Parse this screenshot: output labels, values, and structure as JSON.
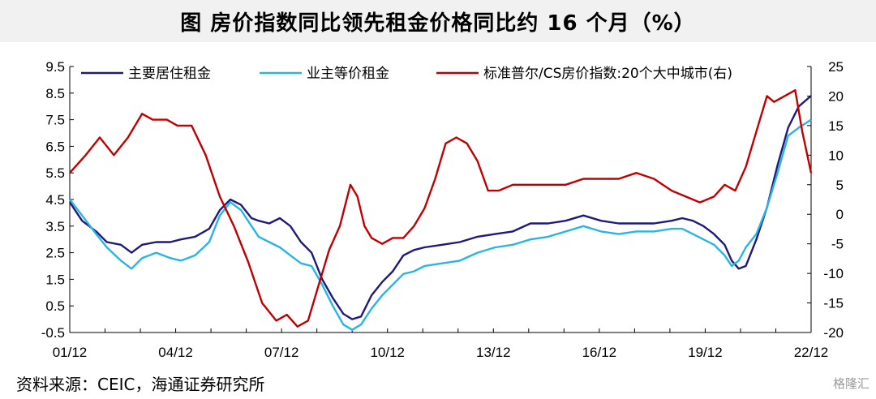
{
  "header": {
    "title": "图  房价指数同比领先租金价格同比约 16 个月（%）"
  },
  "footer": {
    "source": "资料来源：CEIC，海通证券研究所",
    "watermark": "格隆汇"
  },
  "chart_data": {
    "type": "line",
    "title": "图  房价指数同比领先租金价格同比约 16 个月（%）",
    "x_tick_labels": [
      "01/12",
      "04/12",
      "07/12",
      "10/12",
      "13/12",
      "16/12",
      "19/12",
      "22/12"
    ],
    "x_range": [
      2001.95,
      2022.95
    ],
    "y_left": {
      "range": [
        -0.5,
        9.5
      ],
      "ticks": [
        -0.5,
        0.5,
        1.5,
        2.5,
        3.5,
        4.5,
        5.5,
        6.5,
        7.5,
        8.5,
        9.5
      ]
    },
    "y_right": {
      "range": [
        -20,
        25
      ],
      "ticks": [
        -20,
        -15,
        -10,
        -5,
        0,
        5,
        10,
        15,
        20,
        25
      ]
    },
    "legend_position": "top",
    "series": [
      {
        "name": "主要居住租金",
        "axis": "left",
        "color": "#1f1a7a",
        "x": [
          2001.95,
          2002.3,
          2002.7,
          2003.0,
          2003.4,
          2003.7,
          2004.0,
          2004.4,
          2004.8,
          2005.1,
          2005.5,
          2005.9,
          2006.2,
          2006.5,
          2006.8,
          2007.1,
          2007.3,
          2007.6,
          2007.9,
          2008.2,
          2008.5,
          2008.8,
          2009.1,
          2009.4,
          2009.7,
          2009.95,
          2010.2,
          2010.5,
          2010.8,
          2011.1,
          2011.4,
          2011.7,
          2012.0,
          2012.5,
          2013.0,
          2013.5,
          2014.0,
          2014.5,
          2015.0,
          2015.5,
          2016.0,
          2016.5,
          2017.0,
          2017.5,
          2018.0,
          2018.5,
          2019.0,
          2019.3,
          2019.6,
          2019.9,
          2020.2,
          2020.5,
          2020.7,
          2020.9,
          2021.1,
          2021.4,
          2021.7,
          2022.0,
          2022.3,
          2022.6,
          2022.95
        ],
        "values": [
          4.4,
          3.7,
          3.3,
          2.9,
          2.8,
          2.5,
          2.8,
          2.9,
          2.9,
          3.0,
          3.1,
          3.4,
          4.1,
          4.5,
          4.3,
          3.8,
          3.7,
          3.6,
          3.8,
          3.5,
          2.9,
          2.5,
          1.5,
          0.8,
          0.2,
          0.0,
          0.1,
          0.9,
          1.4,
          1.8,
          2.4,
          2.6,
          2.7,
          2.8,
          2.9,
          3.1,
          3.2,
          3.3,
          3.6,
          3.6,
          3.7,
          3.9,
          3.7,
          3.6,
          3.6,
          3.6,
          3.7,
          3.8,
          3.7,
          3.5,
          3.2,
          2.8,
          2.2,
          1.9,
          2.0,
          3.0,
          4.2,
          5.8,
          7.2,
          8.0,
          8.4
        ]
      },
      {
        "name": "业主等价租金",
        "axis": "left",
        "color": "#29b4e6",
        "x": [
          2001.95,
          2002.3,
          2002.7,
          2003.0,
          2003.4,
          2003.7,
          2004.0,
          2004.4,
          2004.8,
          2005.1,
          2005.5,
          2005.9,
          2006.2,
          2006.5,
          2006.8,
          2007.1,
          2007.3,
          2007.6,
          2007.9,
          2008.2,
          2008.5,
          2008.8,
          2009.1,
          2009.4,
          2009.7,
          2009.95,
          2010.2,
          2010.5,
          2010.8,
          2011.1,
          2011.4,
          2011.7,
          2012.0,
          2012.5,
          2013.0,
          2013.5,
          2014.0,
          2014.5,
          2015.0,
          2015.5,
          2016.0,
          2016.5,
          2017.0,
          2017.5,
          2018.0,
          2018.5,
          2019.0,
          2019.3,
          2019.6,
          2019.9,
          2020.2,
          2020.5,
          2020.7,
          2020.9,
          2021.1,
          2021.4,
          2021.7,
          2022.0,
          2022.3,
          2022.6,
          2022.95
        ],
        "values": [
          4.5,
          3.9,
          3.2,
          2.7,
          2.2,
          1.9,
          2.3,
          2.5,
          2.3,
          2.2,
          2.4,
          2.9,
          3.9,
          4.4,
          4.1,
          3.5,
          3.1,
          2.9,
          2.7,
          2.4,
          2.1,
          2.0,
          1.3,
          0.5,
          -0.2,
          -0.4,
          -0.2,
          0.4,
          0.9,
          1.3,
          1.7,
          1.8,
          2.0,
          2.1,
          2.2,
          2.5,
          2.7,
          2.8,
          3.0,
          3.1,
          3.3,
          3.5,
          3.3,
          3.2,
          3.3,
          3.3,
          3.4,
          3.4,
          3.2,
          3.0,
          2.8,
          2.4,
          2.0,
          2.2,
          2.7,
          3.2,
          4.2,
          5.5,
          6.9,
          7.2,
          7.5
        ]
      },
      {
        "name": "标准普尔/CS房价指数:20个大中城市(右)",
        "axis": "right",
        "color": "#c00000",
        "x": [
          2001.95,
          2002.4,
          2002.8,
          2003.2,
          2003.6,
          2004.0,
          2004.3,
          2004.7,
          2005.0,
          2005.4,
          2005.8,
          2006.2,
          2006.6,
          2007.0,
          2007.4,
          2007.8,
          2008.1,
          2008.4,
          2008.7,
          2009.0,
          2009.3,
          2009.6,
          2009.9,
          2010.1,
          2010.3,
          2010.5,
          2010.8,
          2011.1,
          2011.4,
          2011.7,
          2012.0,
          2012.3,
          2012.6,
          2012.9,
          2013.2,
          2013.5,
          2013.8,
          2014.1,
          2014.5,
          2015.0,
          2015.5,
          2016.0,
          2016.5,
          2017.0,
          2017.5,
          2018.0,
          2018.5,
          2019.0,
          2019.4,
          2019.8,
          2020.2,
          2020.5,
          2020.8,
          2021.1,
          2021.4,
          2021.7,
          2021.9,
          2022.2,
          2022.5,
          2022.7,
          2022.95
        ],
        "values": [
          7,
          10,
          13,
          10,
          13,
          17,
          16,
          16,
          15,
          15,
          10,
          3,
          -2,
          -8,
          -15,
          -18,
          -17,
          -19,
          -18,
          -12,
          -6,
          -2,
          5,
          3,
          -2,
          -4,
          -5,
          -4,
          -4,
          -2,
          1,
          6,
          12,
          13,
          12,
          9,
          4,
          4,
          5,
          5,
          5,
          5,
          6,
          6,
          6,
          7,
          6,
          4,
          3,
          2,
          3,
          5,
          4,
          8,
          14,
          20,
          19,
          20,
          21,
          14,
          7
        ]
      }
    ]
  }
}
